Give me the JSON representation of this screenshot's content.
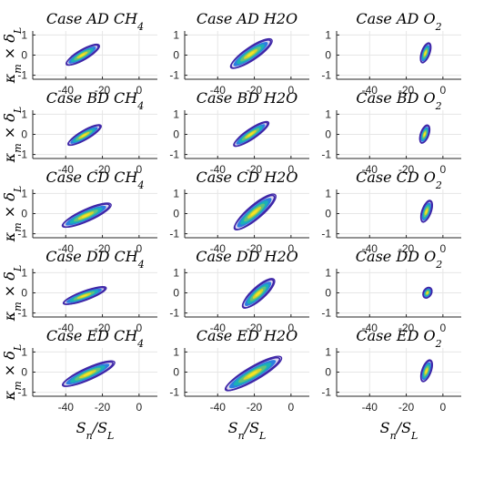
{
  "figure": {
    "xlabel": "S_n/S_L",
    "ylabel": "κ_m × δ_L",
    "xticks": [
      -40,
      -20,
      0
    ],
    "yticks": [
      -1,
      0,
      1
    ],
    "xlim": [
      -58,
      10
    ],
    "ylim": [
      -1.2,
      1.2
    ],
    "grid": true
  },
  "chart_data": [
    {
      "type": "contour",
      "case": "AD",
      "species": "CH4",
      "title": "Case AD CH4",
      "xlabel": "",
      "ylabel": "κ_m × δ_L",
      "xlim": [
        -58,
        10
      ],
      "ylim": [
        -1.2,
        1.2
      ],
      "center": [
        -31,
        0.0
      ],
      "half_length": 10,
      "half_width": 0.22,
      "angle_deg": 30
    },
    {
      "type": "contour",
      "case": "AD",
      "species": "H2O",
      "title": "Case AD H2O",
      "xlabel": "",
      "ylabel": "",
      "xlim": [
        -58,
        10
      ],
      "ylim": [
        -1.2,
        1.2
      ],
      "center": [
        -22,
        0.05
      ],
      "half_length": 13,
      "half_width": 0.28,
      "angle_deg": 34
    },
    {
      "type": "contour",
      "case": "AD",
      "species": "O2",
      "title": "Case AD O2",
      "xlabel": "",
      "ylabel": "",
      "xlim": [
        -58,
        10
      ],
      "ylim": [
        -1.2,
        1.2
      ],
      "center": [
        -9.5,
        0.1
      ],
      "half_length": 5.5,
      "half_width": 0.18,
      "angle_deg": 70
    },
    {
      "type": "contour",
      "case": "BD",
      "species": "CH4",
      "title": "Case BD CH4",
      "xlabel": "",
      "ylabel": "κ_m × δ_L",
      "xlim": [
        -58,
        10
      ],
      "ylim": [
        -1.2,
        1.2
      ],
      "center": [
        -30,
        -0.05
      ],
      "half_length": 10,
      "half_width": 0.2,
      "angle_deg": 30
    },
    {
      "type": "contour",
      "case": "BD",
      "species": "H2O",
      "title": "Case BD H2O",
      "xlabel": "",
      "ylabel": "",
      "xlim": [
        -58,
        10
      ],
      "ylim": [
        -1.2,
        1.2
      ],
      "center": [
        -22,
        0.0
      ],
      "half_length": 11,
      "half_width": 0.22,
      "angle_deg": 34
    },
    {
      "type": "contour",
      "case": "BD",
      "species": "O2",
      "title": "Case BD O2",
      "xlabel": "",
      "ylabel": "",
      "xlim": [
        -58,
        10
      ],
      "ylim": [
        -1.2,
        1.2
      ],
      "center": [
        -10,
        0.0
      ],
      "half_length": 5,
      "half_width": 0.18,
      "angle_deg": 70
    },
    {
      "type": "contour",
      "case": "CD",
      "species": "CH4",
      "title": "Case CD CH4",
      "xlabel": "",
      "ylabel": "κ_m × δ_L",
      "xlim": [
        -58,
        10
      ],
      "ylim": [
        -1.2,
        1.2
      ],
      "center": [
        -29,
        -0.1
      ],
      "half_length": 14,
      "half_width": 0.26,
      "angle_deg": 24
    },
    {
      "type": "contour",
      "case": "CD",
      "species": "H2O",
      "title": "Case CD H2O",
      "xlabel": "",
      "ylabel": "",
      "xlim": [
        -58,
        10
      ],
      "ylim": [
        -1.2,
        1.2
      ],
      "center": [
        -20,
        0.05
      ],
      "half_length": 14,
      "half_width": 0.3,
      "angle_deg": 40
    },
    {
      "type": "contour",
      "case": "CD",
      "species": "O2",
      "title": "Case CD O2",
      "xlabel": "",
      "ylabel": "",
      "xlim": [
        -58,
        10
      ],
      "ylim": [
        -1.2,
        1.2
      ],
      "center": [
        -9,
        0.1
      ],
      "half_length": 6,
      "half_width": 0.2,
      "angle_deg": 70
    },
    {
      "type": "contour",
      "case": "DD",
      "species": "CH4",
      "title": "Case DD CH4",
      "xlabel": "",
      "ylabel": "κ_m × δ_L",
      "xlim": [
        -58,
        10
      ],
      "ylim": [
        -1.2,
        1.2
      ],
      "center": [
        -30,
        -0.15
      ],
      "half_length": 12,
      "half_width": 0.2,
      "angle_deg": 20
    },
    {
      "type": "contour",
      "case": "DD",
      "species": "H2O",
      "title": "Case DD H2O",
      "xlabel": "",
      "ylabel": "",
      "xlim": [
        -58,
        10
      ],
      "ylim": [
        -1.2,
        1.2
      ],
      "center": [
        -18,
        -0.05
      ],
      "half_length": 11,
      "half_width": 0.28,
      "angle_deg": 42
    },
    {
      "type": "contour",
      "case": "DD",
      "species": "O2",
      "title": "Case DD O2",
      "xlabel": "",
      "ylabel": "",
      "xlim": [
        -58,
        10
      ],
      "ylim": [
        -1.2,
        1.2
      ],
      "center": [
        -8.5,
        0.0
      ],
      "half_length": 3,
      "half_width": 0.18,
      "angle_deg": 60
    },
    {
      "type": "contour",
      "case": "ED",
      "species": "CH4",
      "title": "Case ED CH4",
      "xlabel": "S_n/S_L",
      "ylabel": "κ_m × δ_L",
      "xlim": [
        -58,
        10
      ],
      "ylim": [
        -1.2,
        1.2
      ],
      "center": [
        -28,
        -0.1
      ],
      "half_length": 15,
      "half_width": 0.26,
      "angle_deg": 24
    },
    {
      "type": "contour",
      "case": "ED",
      "species": "H2O",
      "title": "Case ED H2O",
      "xlabel": "S_n/S_L",
      "ylabel": "",
      "xlim": [
        -58,
        10
      ],
      "ylim": [
        -1.2,
        1.2
      ],
      "center": [
        -21,
        -0.1
      ],
      "half_length": 17,
      "half_width": 0.3,
      "angle_deg": 30
    },
    {
      "type": "contour",
      "case": "ED",
      "species": "O2",
      "title": "Case ED O2",
      "xlabel": "S_n/S_L",
      "ylabel": "",
      "xlim": [
        -58,
        10
      ],
      "ylim": [
        -1.2,
        1.2
      ],
      "center": [
        -9,
        0.05
      ],
      "half_length": 6,
      "half_width": 0.2,
      "angle_deg": 70
    }
  ],
  "colors": {
    "outer": "#3e26a8",
    "mid1": "#2c7ee0",
    "mid2": "#1bb1b5",
    "mid3": "#64c27a",
    "inner": "#d9d32a",
    "core": "#f5e626",
    "axis": "#262626",
    "grid": "#e6e6e6"
  }
}
